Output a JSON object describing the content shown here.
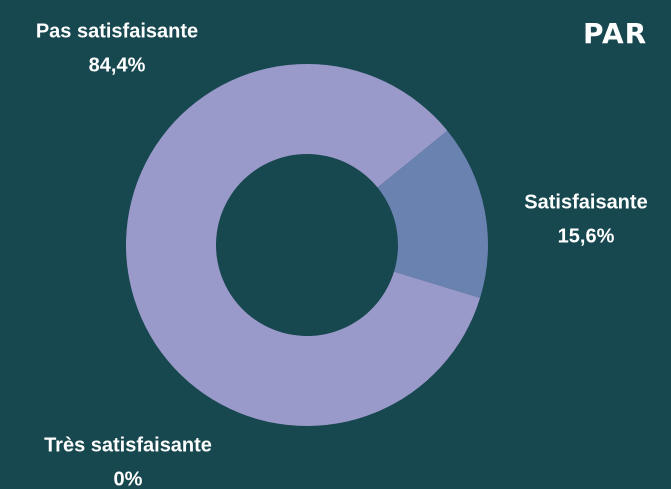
{
  "logo": "PAR",
  "chart_data": {
    "type": "donut",
    "categories": [
      "Pas satisfaisante",
      "Satisfaisante",
      "Très satisfaisante"
    ],
    "values": [
      84.4,
      15.6,
      0
    ],
    "value_labels": [
      "84,4%",
      "15,6%",
      "0%"
    ],
    "colors": [
      "#9a9aca",
      "#6a82b0",
      "#c4c4e6"
    ]
  }
}
